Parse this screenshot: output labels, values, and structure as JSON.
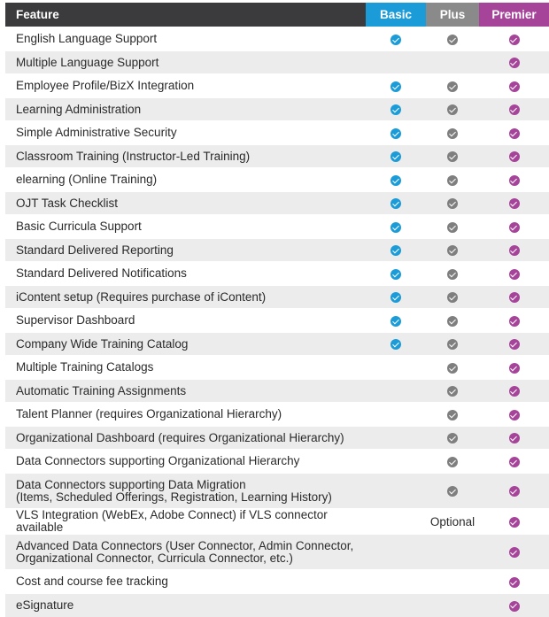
{
  "header": {
    "feature": "Feature",
    "basic": "Basic",
    "plus": "Plus",
    "premier": "Premier"
  },
  "colors": {
    "basic": "#1b9bd7",
    "plus": "#8a8a8a",
    "premier": "#a6449a",
    "header_dark": "#3b3b3e"
  },
  "icons": {
    "included": "check-circle-icon"
  },
  "rows": [
    {
      "feature": "English Language Support",
      "basic": true,
      "plus": true,
      "premier": true
    },
    {
      "feature": "Multiple Language Support",
      "basic": false,
      "plus": false,
      "premier": true
    },
    {
      "feature": "Employee Profile/BizX Integration",
      "basic": true,
      "plus": true,
      "premier": true
    },
    {
      "feature": "Learning Administration",
      "basic": true,
      "plus": true,
      "premier": true
    },
    {
      "feature": "Simple Administrative Security",
      "basic": true,
      "plus": true,
      "premier": true
    },
    {
      "feature": "Classroom Training (Instructor-Led Training)",
      "basic": true,
      "plus": true,
      "premier": true
    },
    {
      "feature": "elearning  (Online Training)",
      "basic": true,
      "plus": true,
      "premier": true
    },
    {
      "feature": "OJT Task Checklist",
      "basic": true,
      "plus": true,
      "premier": true
    },
    {
      "feature": "Basic Curricula Support",
      "basic": true,
      "plus": true,
      "premier": true
    },
    {
      "feature": "Standard Delivered Reporting",
      "basic": true,
      "plus": true,
      "premier": true
    },
    {
      "feature": "Standard Delivered Notifications",
      "basic": true,
      "plus": true,
      "premier": true
    },
    {
      "feature": "iContent setup (Requires purchase of iContent)",
      "basic": true,
      "plus": true,
      "premier": true
    },
    {
      "feature": "Supervisor Dashboard",
      "basic": true,
      "plus": true,
      "premier": true
    },
    {
      "feature": "Company Wide Training Catalog",
      "basic": true,
      "plus": true,
      "premier": true
    },
    {
      "feature": "Multiple Training Catalogs",
      "basic": false,
      "plus": true,
      "premier": true
    },
    {
      "feature": "Automatic Training Assignments",
      "basic": false,
      "plus": true,
      "premier": true
    },
    {
      "feature": "Talent Planner (requires Organizational Hierarchy)",
      "basic": false,
      "plus": true,
      "premier": true
    },
    {
      "feature": "Organizational Dashboard (requires Organizational Hierarchy)",
      "basic": false,
      "plus": true,
      "premier": true
    },
    {
      "feature": "Data Connectors supporting Organizational Hierarchy",
      "basic": false,
      "plus": true,
      "premier": true
    },
    {
      "feature": "Data Connectors supporting Data Migration\n(Items, Scheduled Offerings, Registration, Learning History)",
      "basic": false,
      "plus": true,
      "premier": true
    },
    {
      "feature": "VLS Integration (WebEx, Adobe Connect) if VLS connector available",
      "basic": false,
      "plus": "Optional",
      "premier": true
    },
    {
      "feature": "Advanced Data Connectors (User Connector, Admin Connector,\nOrganizational Connector, Curricula Connector, etc.)",
      "basic": false,
      "plus": false,
      "premier": true
    },
    {
      "feature": "Cost and course fee tracking",
      "basic": false,
      "plus": false,
      "premier": true
    },
    {
      "feature": "eSignature",
      "basic": false,
      "plus": false,
      "premier": true
    }
  ]
}
